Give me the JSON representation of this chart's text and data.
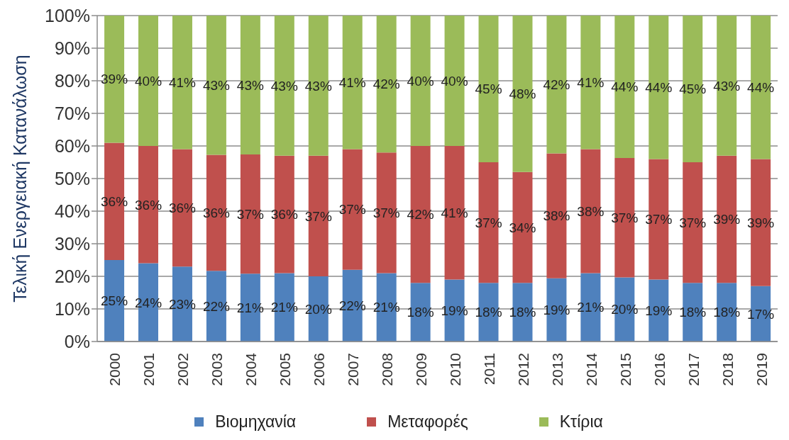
{
  "chart_data": {
    "type": "bar",
    "stacked": true,
    "ylabel": "Τελική Ενεργειακή Κατανάλωση",
    "categories": [
      "2000",
      "2001",
      "2002",
      "2003",
      "2004",
      "2005",
      "2006",
      "2007",
      "2008",
      "2009",
      "2010",
      "2011",
      "2012",
      "2013",
      "2014",
      "2015",
      "2016",
      "2017",
      "2018",
      "2019"
    ],
    "series": [
      {
        "name": "Βιομηχανία",
        "color": "#4f81bd",
        "values": [
          25,
          24,
          23,
          21.7,
          20.8,
          21,
          20,
          22,
          21,
          18,
          19,
          18,
          18,
          19.4,
          21,
          19.7,
          19,
          18,
          18,
          17
        ],
        "value_labels": [
          "25%",
          "24%",
          "23%",
          "22%",
          "21%",
          "21%",
          "20%",
          "22%",
          "21%",
          "18%",
          "19%",
          "18%",
          "18%",
          "19%",
          "21%",
          "20%",
          "19%",
          "18%",
          "18%",
          "17%"
        ]
      },
      {
        "name": "Μεταφορές",
        "color": "#c0504d",
        "values": [
          36,
          36,
          36,
          35.6,
          36.6,
          36,
          37,
          37,
          37,
          42,
          41,
          37,
          34,
          38.3,
          38,
          36.6,
          37,
          37,
          39,
          39
        ],
        "value_labels": [
          "36%",
          "36%",
          "36%",
          "36%",
          "37%",
          "36%",
          "37%",
          "37%",
          "37%",
          "42%",
          "41%",
          "37%",
          "34%",
          "38%",
          "38%",
          "37%",
          "37%",
          "37%",
          "39%",
          "39%"
        ]
      },
      {
        "name": "Κτίρια",
        "color": "#9bbb59",
        "values": [
          39,
          40,
          41,
          42.7,
          42.6,
          43,
          43,
          41,
          42,
          40,
          40,
          45,
          48,
          42.3,
          41,
          43.7,
          44,
          45,
          43,
          44
        ],
        "value_labels": [
          "39%",
          "40%",
          "41%",
          "43%",
          "43%",
          "43%",
          "43%",
          "41%",
          "42%",
          "40%",
          "40%",
          "45%",
          "48%",
          "42%",
          "41%",
          "44%",
          "44%",
          "45%",
          "43%",
          "44%"
        ]
      }
    ],
    "ylim": [
      0,
      100
    ],
    "yticks": [
      {
        "value": 0,
        "label": "0%"
      },
      {
        "value": 10,
        "label": "10%"
      },
      {
        "value": 20,
        "label": "20%"
      },
      {
        "value": 30,
        "label": "30%"
      },
      {
        "value": 40,
        "label": "40%"
      },
      {
        "value": 50,
        "label": "50%"
      },
      {
        "value": 60,
        "label": "60%"
      },
      {
        "value": 70,
        "label": "70%"
      },
      {
        "value": 80,
        "label": "80%"
      },
      {
        "value": 90,
        "label": "90%"
      },
      {
        "value": 100,
        "label": "100%"
      }
    ],
    "grid": "y",
    "legend": "bottom"
  }
}
